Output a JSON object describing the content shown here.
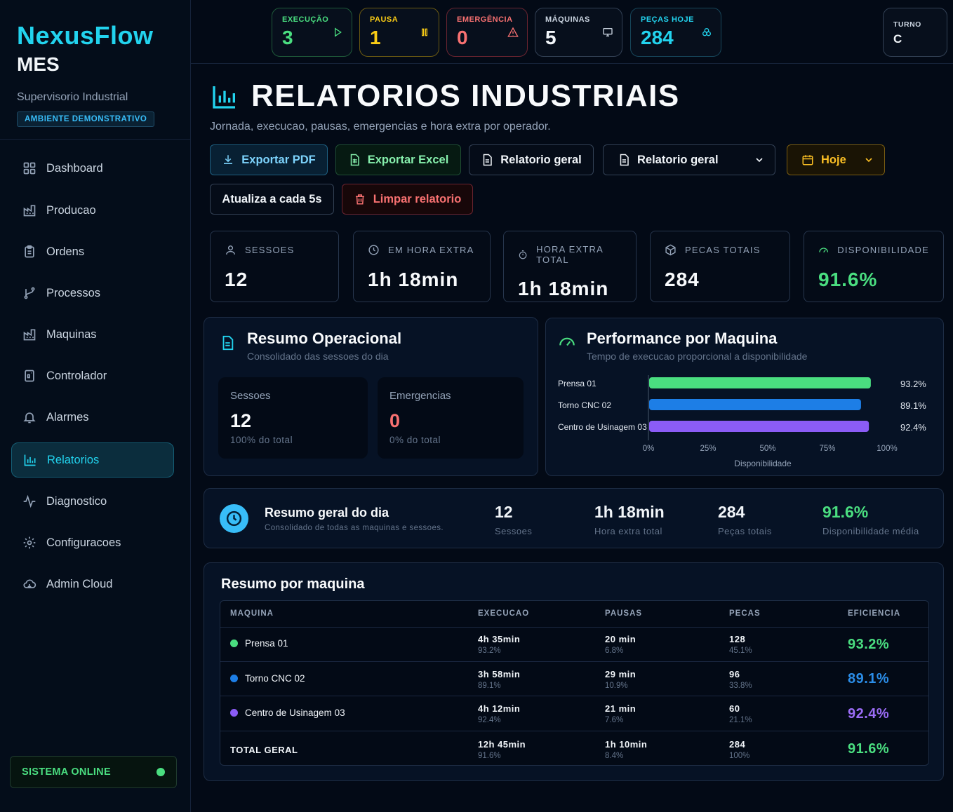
{
  "sidebar": {
    "brand": "NexusFlow",
    "brand_sub": "MES",
    "subtitle": "Supervisorio Industrial",
    "env_badge": "AMBIENTE DEMONSTRATIVO",
    "items": [
      {
        "label": "Dashboard",
        "icon": "grid-icon"
      },
      {
        "label": "Producao",
        "icon": "factory-icon"
      },
      {
        "label": "Ordens",
        "icon": "clipboard-icon"
      },
      {
        "label": "Processos",
        "icon": "branch-icon"
      },
      {
        "label": "Maquinas",
        "icon": "factory-icon"
      },
      {
        "label": "Controlador",
        "icon": "device-icon"
      },
      {
        "label": "Alarmes",
        "icon": "bell-icon"
      },
      {
        "label": "Relatorios",
        "icon": "bar-chart-icon",
        "active": true
      },
      {
        "label": "Diagnostico",
        "icon": "activity-icon"
      },
      {
        "label": "Configuracoes",
        "icon": "gear-icon"
      },
      {
        "label": "Admin Cloud",
        "icon": "cloud-icon"
      }
    ],
    "status": "SISTEMA ONLINE"
  },
  "status_cards": {
    "execucao": {
      "label": "EXECUÇÃO",
      "value": "3",
      "color": "#4ade80"
    },
    "pausa": {
      "label": "PAUSA",
      "value": "1",
      "color": "#facc15"
    },
    "emergencia": {
      "label": "EMERGÊNCIA",
      "value": "0",
      "color": "#f87171"
    },
    "maquinas": {
      "label": "MÁQUINAS",
      "value": "5",
      "color": "#e2e8f0"
    },
    "pecas": {
      "label": "PEÇAS HOJE",
      "value": "284",
      "color": "#22d3ee"
    },
    "turno": {
      "label": "TURNO",
      "value": "C"
    }
  },
  "header": {
    "title": "RELATORIOS INDUSTRIAIS",
    "subtitle": "Jornada, execucao, pausas, emergencias e hora extra por operador."
  },
  "toolbar": {
    "export_pdf": "Exportar PDF",
    "export_excel": "Exportar Excel",
    "report_general": "Relatorio geral",
    "report_select": "Relatorio geral",
    "period_select": "Hoje",
    "auto_refresh": "Atualiza a cada 5s",
    "clear": "Limpar relatorio"
  },
  "kpis": {
    "sessoes": {
      "label": "SESSOES",
      "value": "12"
    },
    "em_hora_extra": {
      "label": "EM HORA EXTRA",
      "value": "1h 18min"
    },
    "hora_extra_total": {
      "label": "HORA EXTRA TOTAL",
      "value": "1h 18min"
    },
    "pecas_totais": {
      "label": "PECAS TOTAIS",
      "value": "284"
    },
    "disponibilidade": {
      "label": "DISPONIBILIDADE",
      "value": "91.6%"
    }
  },
  "resumo_operacional": {
    "title": "Resumo Operacional",
    "subtitle": "Consolidado das sessoes do dia",
    "sessoes": {
      "label": "Sessoes",
      "value": "12",
      "note": "100% do total"
    },
    "emergencias": {
      "label": "Emergencias",
      "value": "0",
      "note": "0% do total"
    }
  },
  "performance": {
    "title": "Performance por Maquina",
    "subtitle": "Tempo de execucao proporcional a disponibilidade"
  },
  "chart_data": {
    "type": "bar",
    "orientation": "horizontal",
    "categories": [
      "Prensa 01",
      "Torno CNC 02",
      "Centro de Usinagem 03"
    ],
    "values": [
      93.2,
      89.1,
      92.4
    ],
    "value_labels": [
      "93.2%",
      "89.1%",
      "92.4%"
    ],
    "colors": [
      "#4ade80",
      "#1d7ee6",
      "#8b5cf6"
    ],
    "xlabel": "Disponibilidade",
    "xlim": [
      0,
      100
    ],
    "xticks": [
      "0%",
      "25%",
      "50%",
      "75%",
      "100%"
    ],
    "grid": false
  },
  "resumo_geral": {
    "title": "Resumo geral do dia",
    "subtitle": "Consolidado de todas as maquinas e sessoes.",
    "stats": [
      {
        "value": "12",
        "label": "Sessoes",
        "color": "#f1f5f9"
      },
      {
        "value": "1h 18min",
        "label": "Hora extra total",
        "color": "#f1f5f9"
      },
      {
        "value": "284",
        "label": "Peças totais",
        "color": "#f1f5f9"
      },
      {
        "value": "91.6%",
        "label": "Disponibilidade média",
        "color": "#4ade80"
      }
    ]
  },
  "table": {
    "title": "Resumo por maquina",
    "headers": [
      "MAQUINA",
      "EXECUCAO",
      "PAUSAS",
      "PECAS",
      "EFICIENCIA"
    ],
    "rows": [
      {
        "name": "Prensa 01",
        "color": "#4ade80",
        "exec": "4h 35min",
        "exec_pct": "93.2%",
        "pausas": "20 min",
        "pausas_pct": "6.8%",
        "pecas": "128",
        "pecas_pct": "45.1%",
        "eff": "93.2%"
      },
      {
        "name": "Torno CNC 02",
        "color": "#1d7ee6",
        "exec": "3h 58min",
        "exec_pct": "89.1%",
        "pausas": "29 min",
        "pausas_pct": "10.9%",
        "pecas": "96",
        "pecas_pct": "33.8%",
        "eff": "89.1%"
      },
      {
        "name": "Centro de Usinagem 03",
        "color": "#8b5cf6",
        "exec": "4h 12min",
        "exec_pct": "92.4%",
        "pausas": "21 min",
        "pausas_pct": "7.6%",
        "pecas": "60",
        "pecas_pct": "21.1%",
        "eff": "92.4%"
      }
    ],
    "total": {
      "name": "TOTAL GERAL",
      "color": "#4ade80",
      "exec": "12h 45min",
      "exec_pct": "91.6%",
      "pausas": "1h 10min",
      "pausas_pct": "8.4%",
      "pecas": "284",
      "pecas_pct": "100%",
      "eff": "91.6%"
    }
  }
}
